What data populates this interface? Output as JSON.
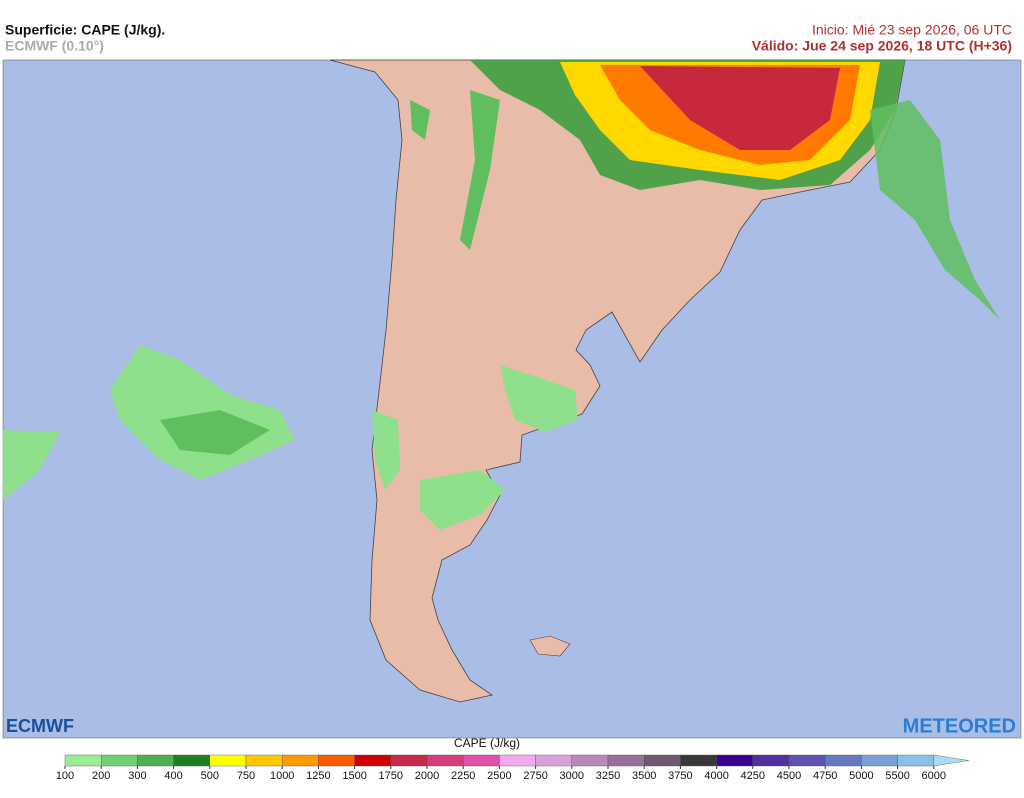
{
  "header": {
    "title": "Superficie: CAPE (J/kg).",
    "model": "ECMWF (0.10°)",
    "init": "Inicio: Mié 23 sep 2026, 06 UTC",
    "valid": "Válido: Jue 24 sep 2026, 18 UTC (H+36)"
  },
  "logos": {
    "left": "ECMWF",
    "right": "METEORED"
  },
  "legend": {
    "label": "CAPE (J/kg)",
    "ticks": [
      100,
      200,
      300,
      400,
      500,
      750,
      1000,
      1250,
      1500,
      1750,
      2000,
      2250,
      2500,
      2750,
      3000,
      3250,
      3500,
      3750,
      4000,
      4250,
      4500,
      4750,
      5000,
      5500,
      6000
    ],
    "colors": [
      "#98ee90",
      "#70d070",
      "#4caf50",
      "#1e7d1e",
      "#ffff00",
      "#ffc800",
      "#ff9a00",
      "#ff5a00",
      "#d00000",
      "#c8284b",
      "#d83c78",
      "#e050a8",
      "#f4a8f4",
      "#d8a0d8",
      "#b888b8",
      "#987098",
      "#705870",
      "#383838",
      "#3c0090",
      "#5030a0",
      "#6050b0",
      "#6878c0",
      "#78a0d8",
      "#88c0e8",
      "#a8dcf4"
    ]
  }
}
